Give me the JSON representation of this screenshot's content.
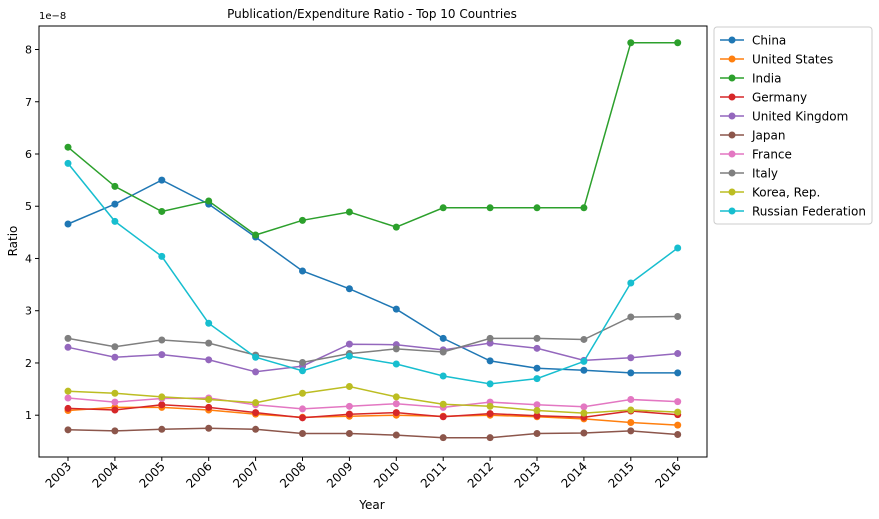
{
  "chart_data": {
    "type": "line",
    "title": "Publication/Expenditure Ratio - Top 10 Countries",
    "xlabel": "Year",
    "ylabel": "Ratio",
    "offset_label": "1e−8",
    "x": [
      2003,
      2004,
      2005,
      2006,
      2007,
      2008,
      2009,
      2010,
      2011,
      2012,
      2013,
      2014,
      2015,
      2016
    ],
    "xticks": [
      "2003",
      "2004",
      "2005",
      "2006",
      "2007",
      "2008",
      "2009",
      "2010",
      "2011",
      "2012",
      "2013",
      "2014",
      "2015",
      "2016"
    ],
    "yticks": [
      1,
      2,
      3,
      4,
      5,
      6,
      7,
      8
    ],
    "ytick_labels": [
      "1",
      "2",
      "3",
      "4",
      "5",
      "6",
      "7",
      "8"
    ],
    "ylim": [
      0.2,
      8.45
    ],
    "y_scale_note": "values ×1e−8",
    "grid": false,
    "legend_position": "outside-right",
    "series": [
      {
        "name": "China",
        "color": "#1f77b4",
        "values": [
          4.66,
          5.04,
          5.5,
          5.04,
          4.41,
          3.76,
          3.42,
          3.03,
          2.47,
          2.04,
          1.9,
          1.86,
          1.81,
          1.81
        ]
      },
      {
        "name": "United States",
        "color": "#ff7f0e",
        "values": [
          1.09,
          1.15,
          1.15,
          1.1,
          1.02,
          0.96,
          0.98,
          1.0,
          0.98,
          1.0,
          0.97,
          0.93,
          0.86,
          0.81
        ]
      },
      {
        "name": "India",
        "color": "#2ca02c",
        "values": [
          6.13,
          5.38,
          4.9,
          5.1,
          4.45,
          4.73,
          4.89,
          4.6,
          4.97,
          4.97,
          4.97,
          4.97,
          8.13,
          8.13
        ]
      },
      {
        "name": "Germany",
        "color": "#d62728",
        "values": [
          1.13,
          1.1,
          1.2,
          1.15,
          1.05,
          0.95,
          1.02,
          1.05,
          0.97,
          1.03,
          0.99,
          0.96,
          1.08,
          1.01
        ]
      },
      {
        "name": "United Kingdom",
        "color": "#9467bd",
        "values": [
          2.3,
          2.11,
          2.16,
          2.06,
          1.83,
          1.94,
          2.36,
          2.35,
          2.25,
          2.38,
          2.28,
          2.05,
          2.1,
          2.18
        ]
      },
      {
        "name": "Japan",
        "color": "#8c564b",
        "values": [
          0.72,
          0.7,
          0.73,
          0.75,
          0.73,
          0.65,
          0.65,
          0.62,
          0.57,
          0.57,
          0.65,
          0.66,
          0.7,
          0.63
        ]
      },
      {
        "name": "France",
        "color": "#e377c2",
        "values": [
          1.33,
          1.25,
          1.32,
          1.33,
          1.2,
          1.12,
          1.17,
          1.22,
          1.15,
          1.25,
          1.2,
          1.16,
          1.3,
          1.26
        ]
      },
      {
        "name": "Italy",
        "color": "#7f7f7f",
        "values": [
          2.47,
          2.31,
          2.44,
          2.38,
          2.15,
          2.01,
          2.18,
          2.27,
          2.21,
          2.47,
          2.47,
          2.45,
          2.88,
          2.89
        ]
      },
      {
        "name": "Korea, Rep.",
        "color": "#bcbd22",
        "values": [
          1.46,
          1.42,
          1.35,
          1.3,
          1.24,
          1.42,
          1.55,
          1.35,
          1.21,
          1.17,
          1.09,
          1.04,
          1.1,
          1.06
        ]
      },
      {
        "name": "Russian Federation",
        "color": "#17becf",
        "values": [
          5.82,
          4.71,
          4.04,
          2.76,
          2.11,
          1.85,
          2.13,
          1.98,
          1.75,
          1.6,
          1.7,
          2.03,
          3.53,
          4.2
        ]
      }
    ]
  }
}
